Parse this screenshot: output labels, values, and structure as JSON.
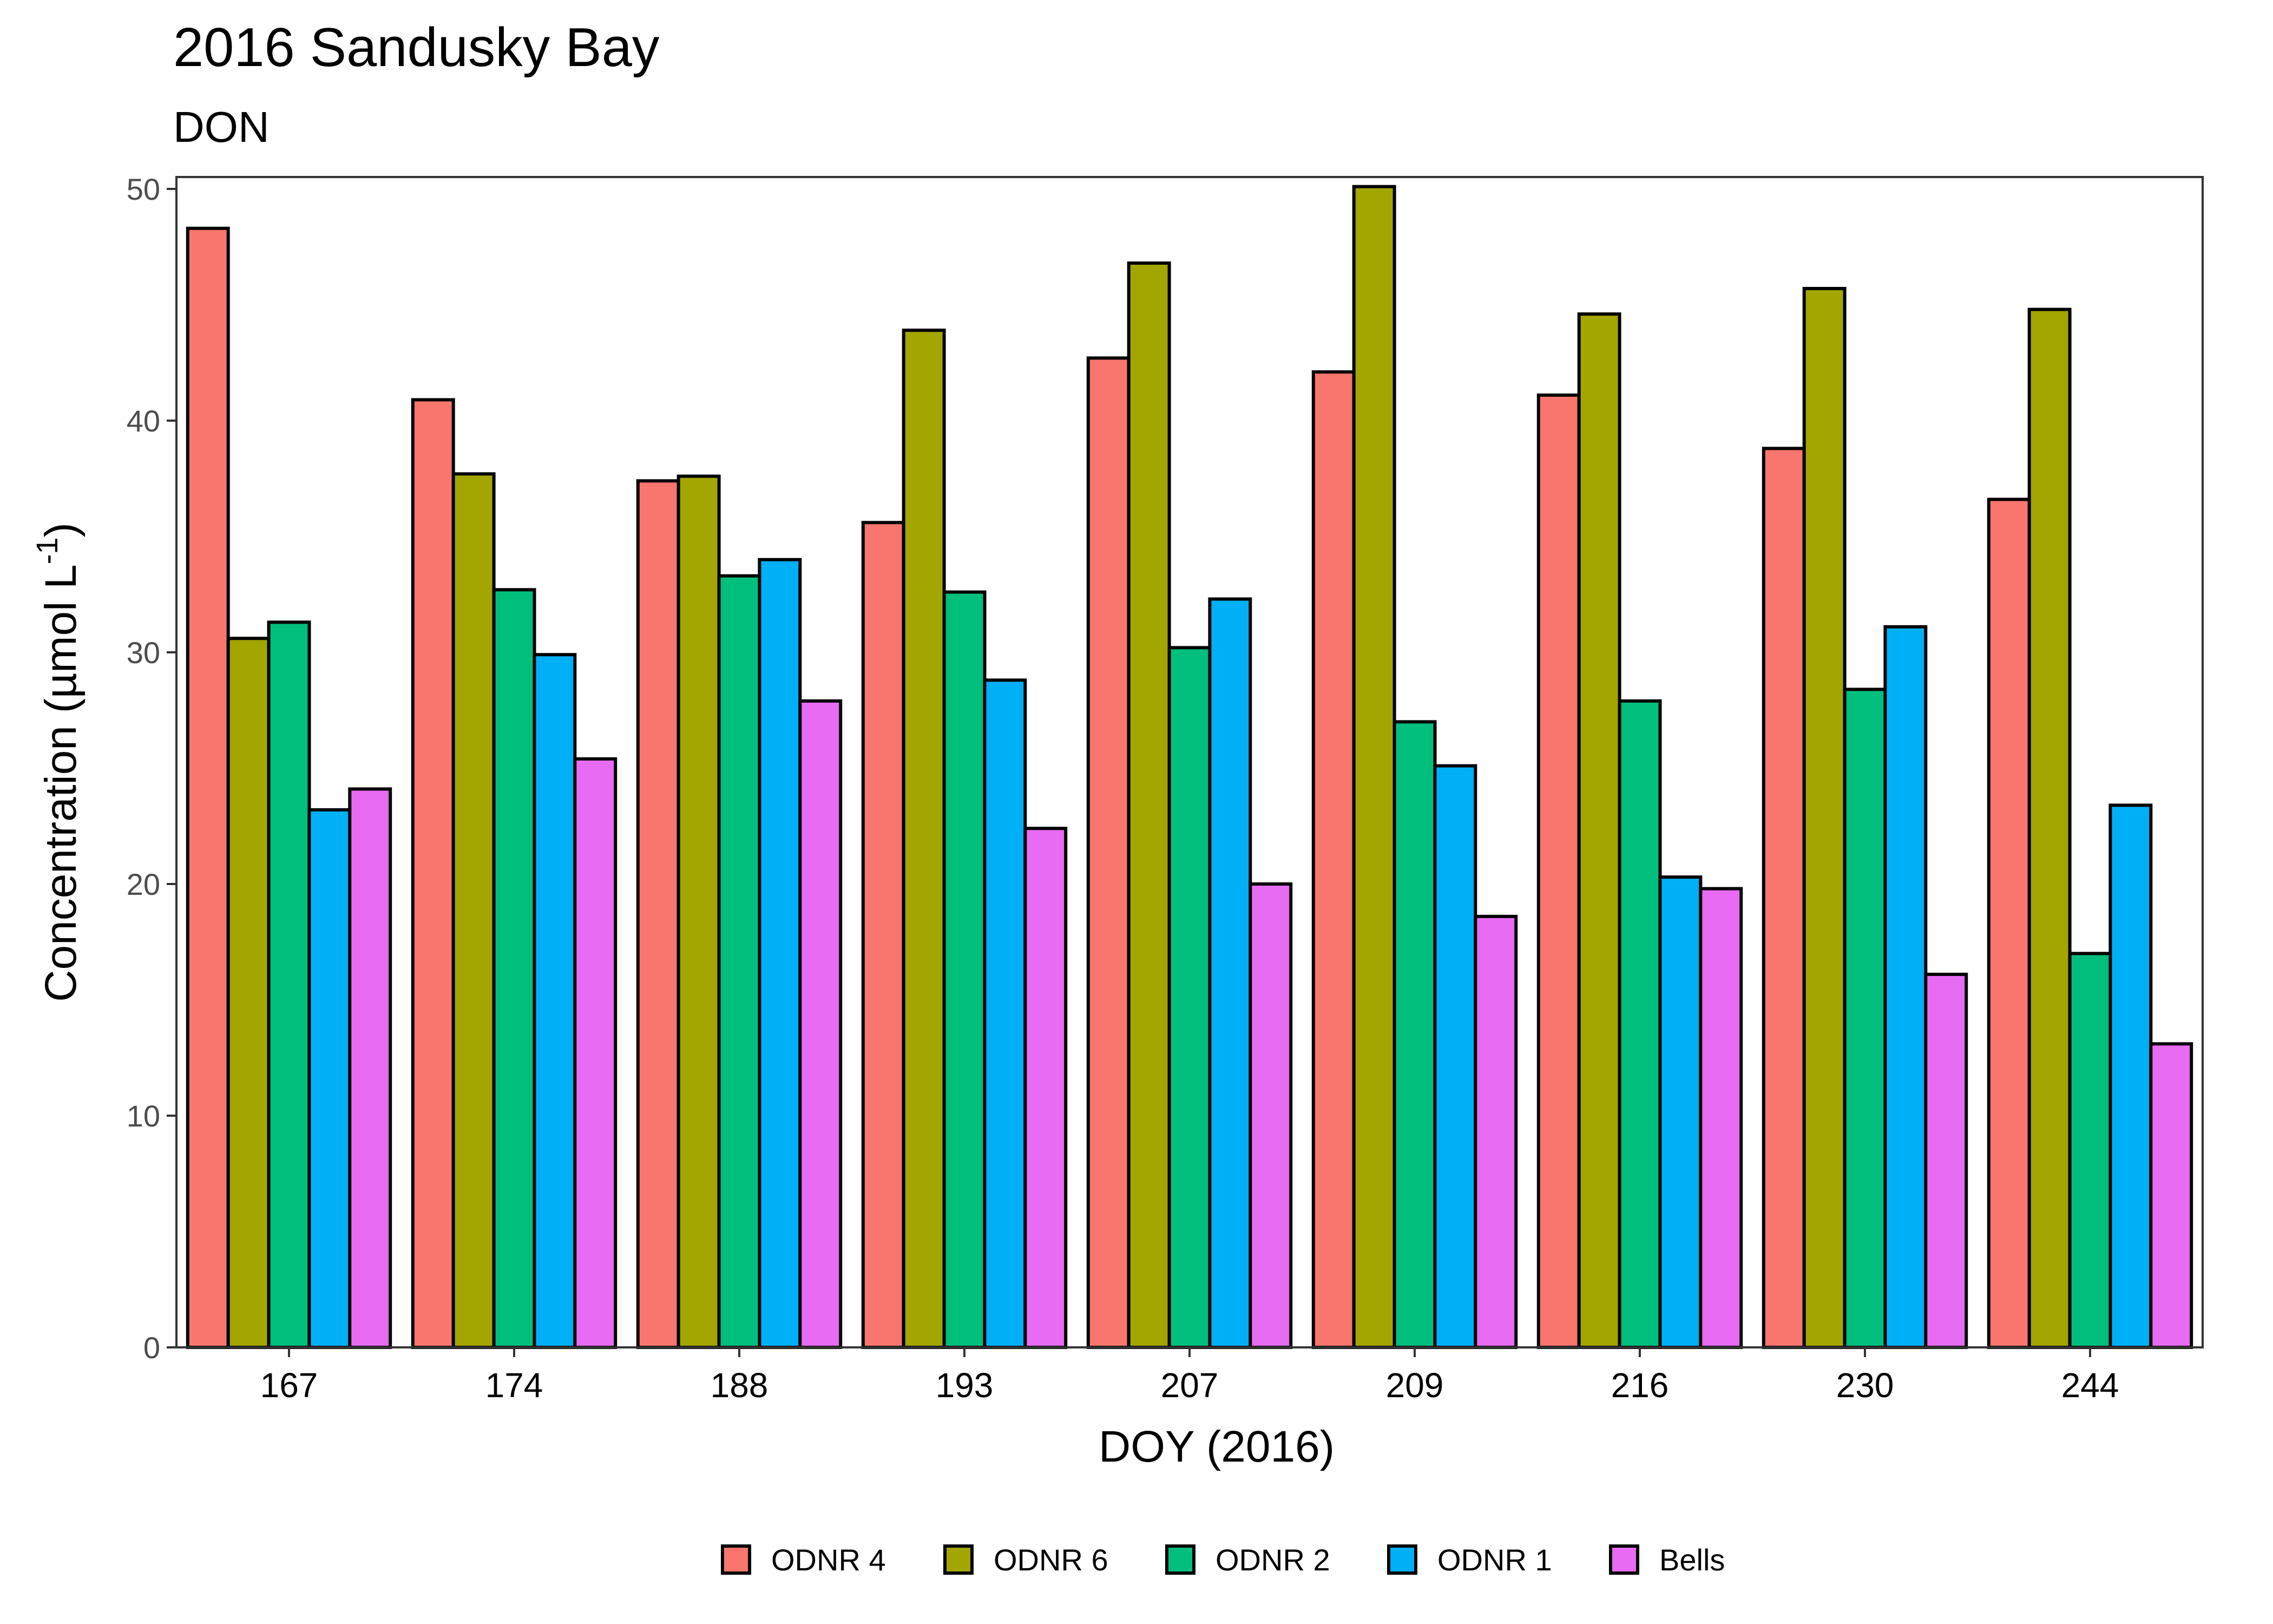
{
  "chart_data": {
    "type": "bar",
    "title": "2016 Sandusky Bay",
    "subtitle": "DON",
    "xlabel": "DOY (2016)",
    "ylabel_main": "Concentration (µmol L",
    "ylabel_sup": "-1",
    "ylabel_close": ")",
    "ylim": [
      0,
      50
    ],
    "yticks": [
      0,
      10,
      20,
      30,
      40,
      50
    ],
    "categories": [
      "167",
      "174",
      "188",
      "193",
      "207",
      "209",
      "216",
      "230",
      "244"
    ],
    "series": [
      {
        "name": "ODNR 4",
        "color": "#F8766D",
        "values": [
          48.3,
          40.9,
          37.4,
          35.6,
          42.7,
          42.1,
          41.1,
          38.8,
          36.6
        ]
      },
      {
        "name": "ODNR 6",
        "color": "#A3A500",
        "values": [
          30.6,
          37.7,
          37.6,
          43.9,
          46.8,
          50.1,
          44.6,
          45.7,
          44.8
        ]
      },
      {
        "name": "ODNR 2",
        "color": "#00BF7D",
        "values": [
          31.3,
          32.7,
          33.3,
          32.6,
          30.2,
          27.0,
          27.9,
          28.4,
          17.0
        ]
      },
      {
        "name": "ODNR 1",
        "color": "#00B0F6",
        "values": [
          23.2,
          29.9,
          34.0,
          28.8,
          32.3,
          25.1,
          20.3,
          31.1,
          23.4
        ]
      },
      {
        "name": "Bells",
        "color": "#E76BF3",
        "values": [
          24.1,
          25.4,
          27.9,
          22.4,
          20.0,
          18.6,
          19.8,
          16.1,
          13.1
        ]
      }
    ],
    "legend_position": "bottom",
    "grid": false
  }
}
